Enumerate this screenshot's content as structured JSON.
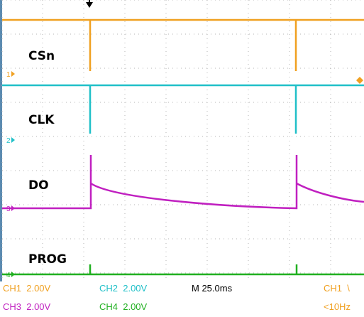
{
  "colors": {
    "ch1": "#f0a020",
    "ch2": "#20c0c8",
    "ch3": "#c020c0",
    "ch4": "#20b020",
    "grid": "#b4b4b4",
    "frame": "#5a8ab0"
  },
  "channels": [
    {
      "id": "1",
      "label": "CSn"
    },
    {
      "id": "2",
      "label": "CLK"
    },
    {
      "id": "3",
      "label": "DO"
    },
    {
      "id": "4",
      "label": "PROG"
    }
  ],
  "status": {
    "ch1": "CH1  2.00V",
    "ch2": "CH2  2.00V",
    "timebase": "M 25.0ms",
    "trigger": "CH1  \\",
    "ch3": "CH3  2.00V",
    "ch4": "CH4  2.00V",
    "freq": "<10Hz"
  }
}
